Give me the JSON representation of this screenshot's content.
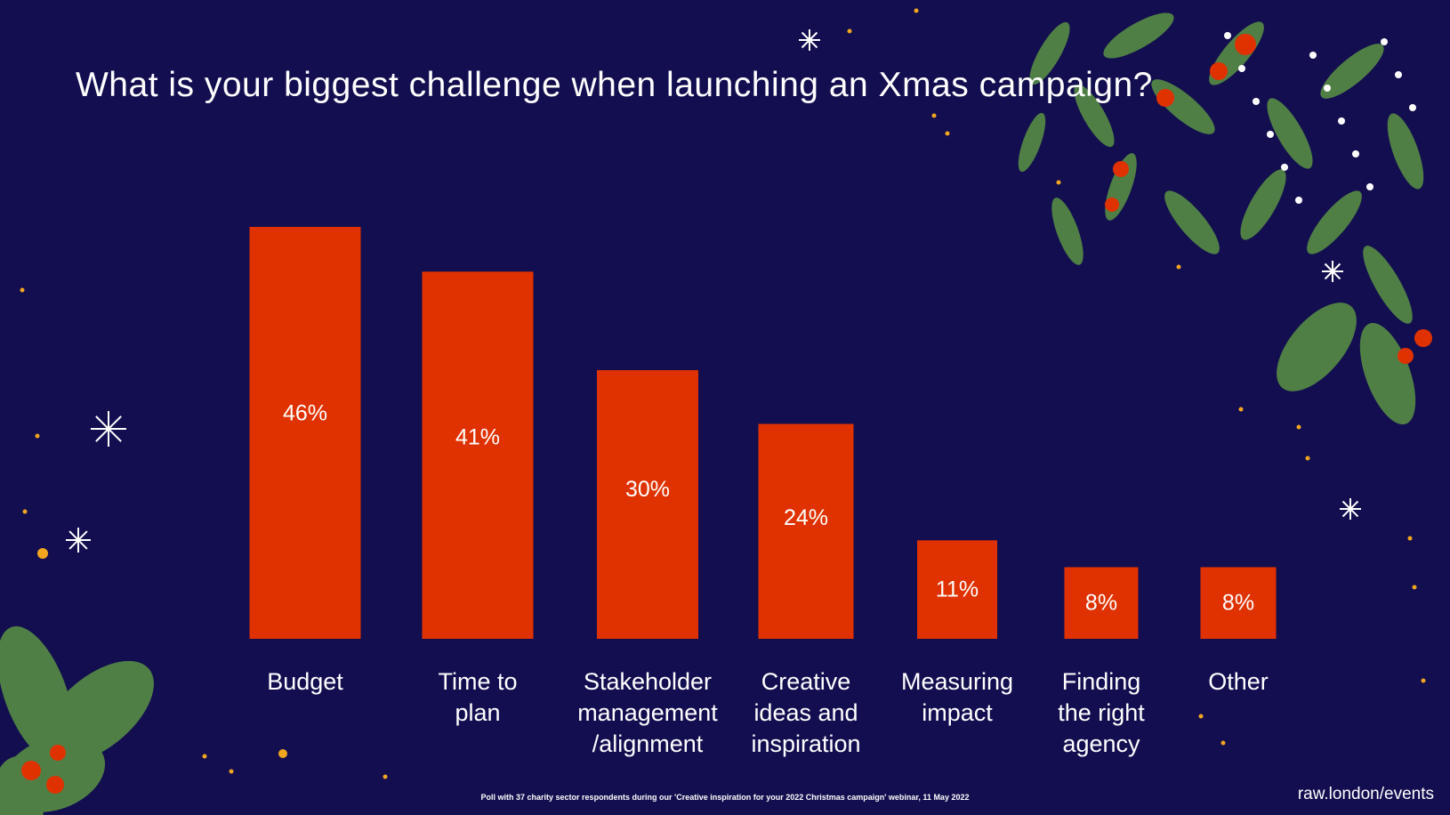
{
  "chart_data": {
    "type": "bar",
    "title": "What is your biggest challenge when launching an Xmas campaign?",
    "categories": [
      [
        "Budget"
      ],
      [
        "Time to",
        "plan"
      ],
      [
        "Stakeholder",
        "management",
        "/alignment"
      ],
      [
        "Creative",
        "ideas and",
        "inspiration"
      ],
      [
        "Measuring",
        "impact"
      ],
      [
        "Finding",
        "the right",
        "agency"
      ],
      [
        "Other"
      ]
    ],
    "values": [
      46,
      41,
      30,
      24,
      11,
      8,
      8
    ],
    "data_labels": [
      "46%",
      "41%",
      "30%",
      "24%",
      "11%",
      "8%",
      "8%"
    ],
    "unit": "%",
    "ylim": [
      0,
      46
    ],
    "grid": false,
    "xlabel": "",
    "ylabel": "",
    "bar_color": "#e03200"
  },
  "footnote": "Poll with 37 charity sector respondents during our 'Creative inspiration for your 2022 Christmas campaign' webinar, 11 May 2022",
  "brand": "raw.london/events",
  "colors": {
    "background": "#130e4f",
    "leaf": "#4f7f45",
    "berry": "#e03200",
    "dot": "#f2a51f"
  }
}
